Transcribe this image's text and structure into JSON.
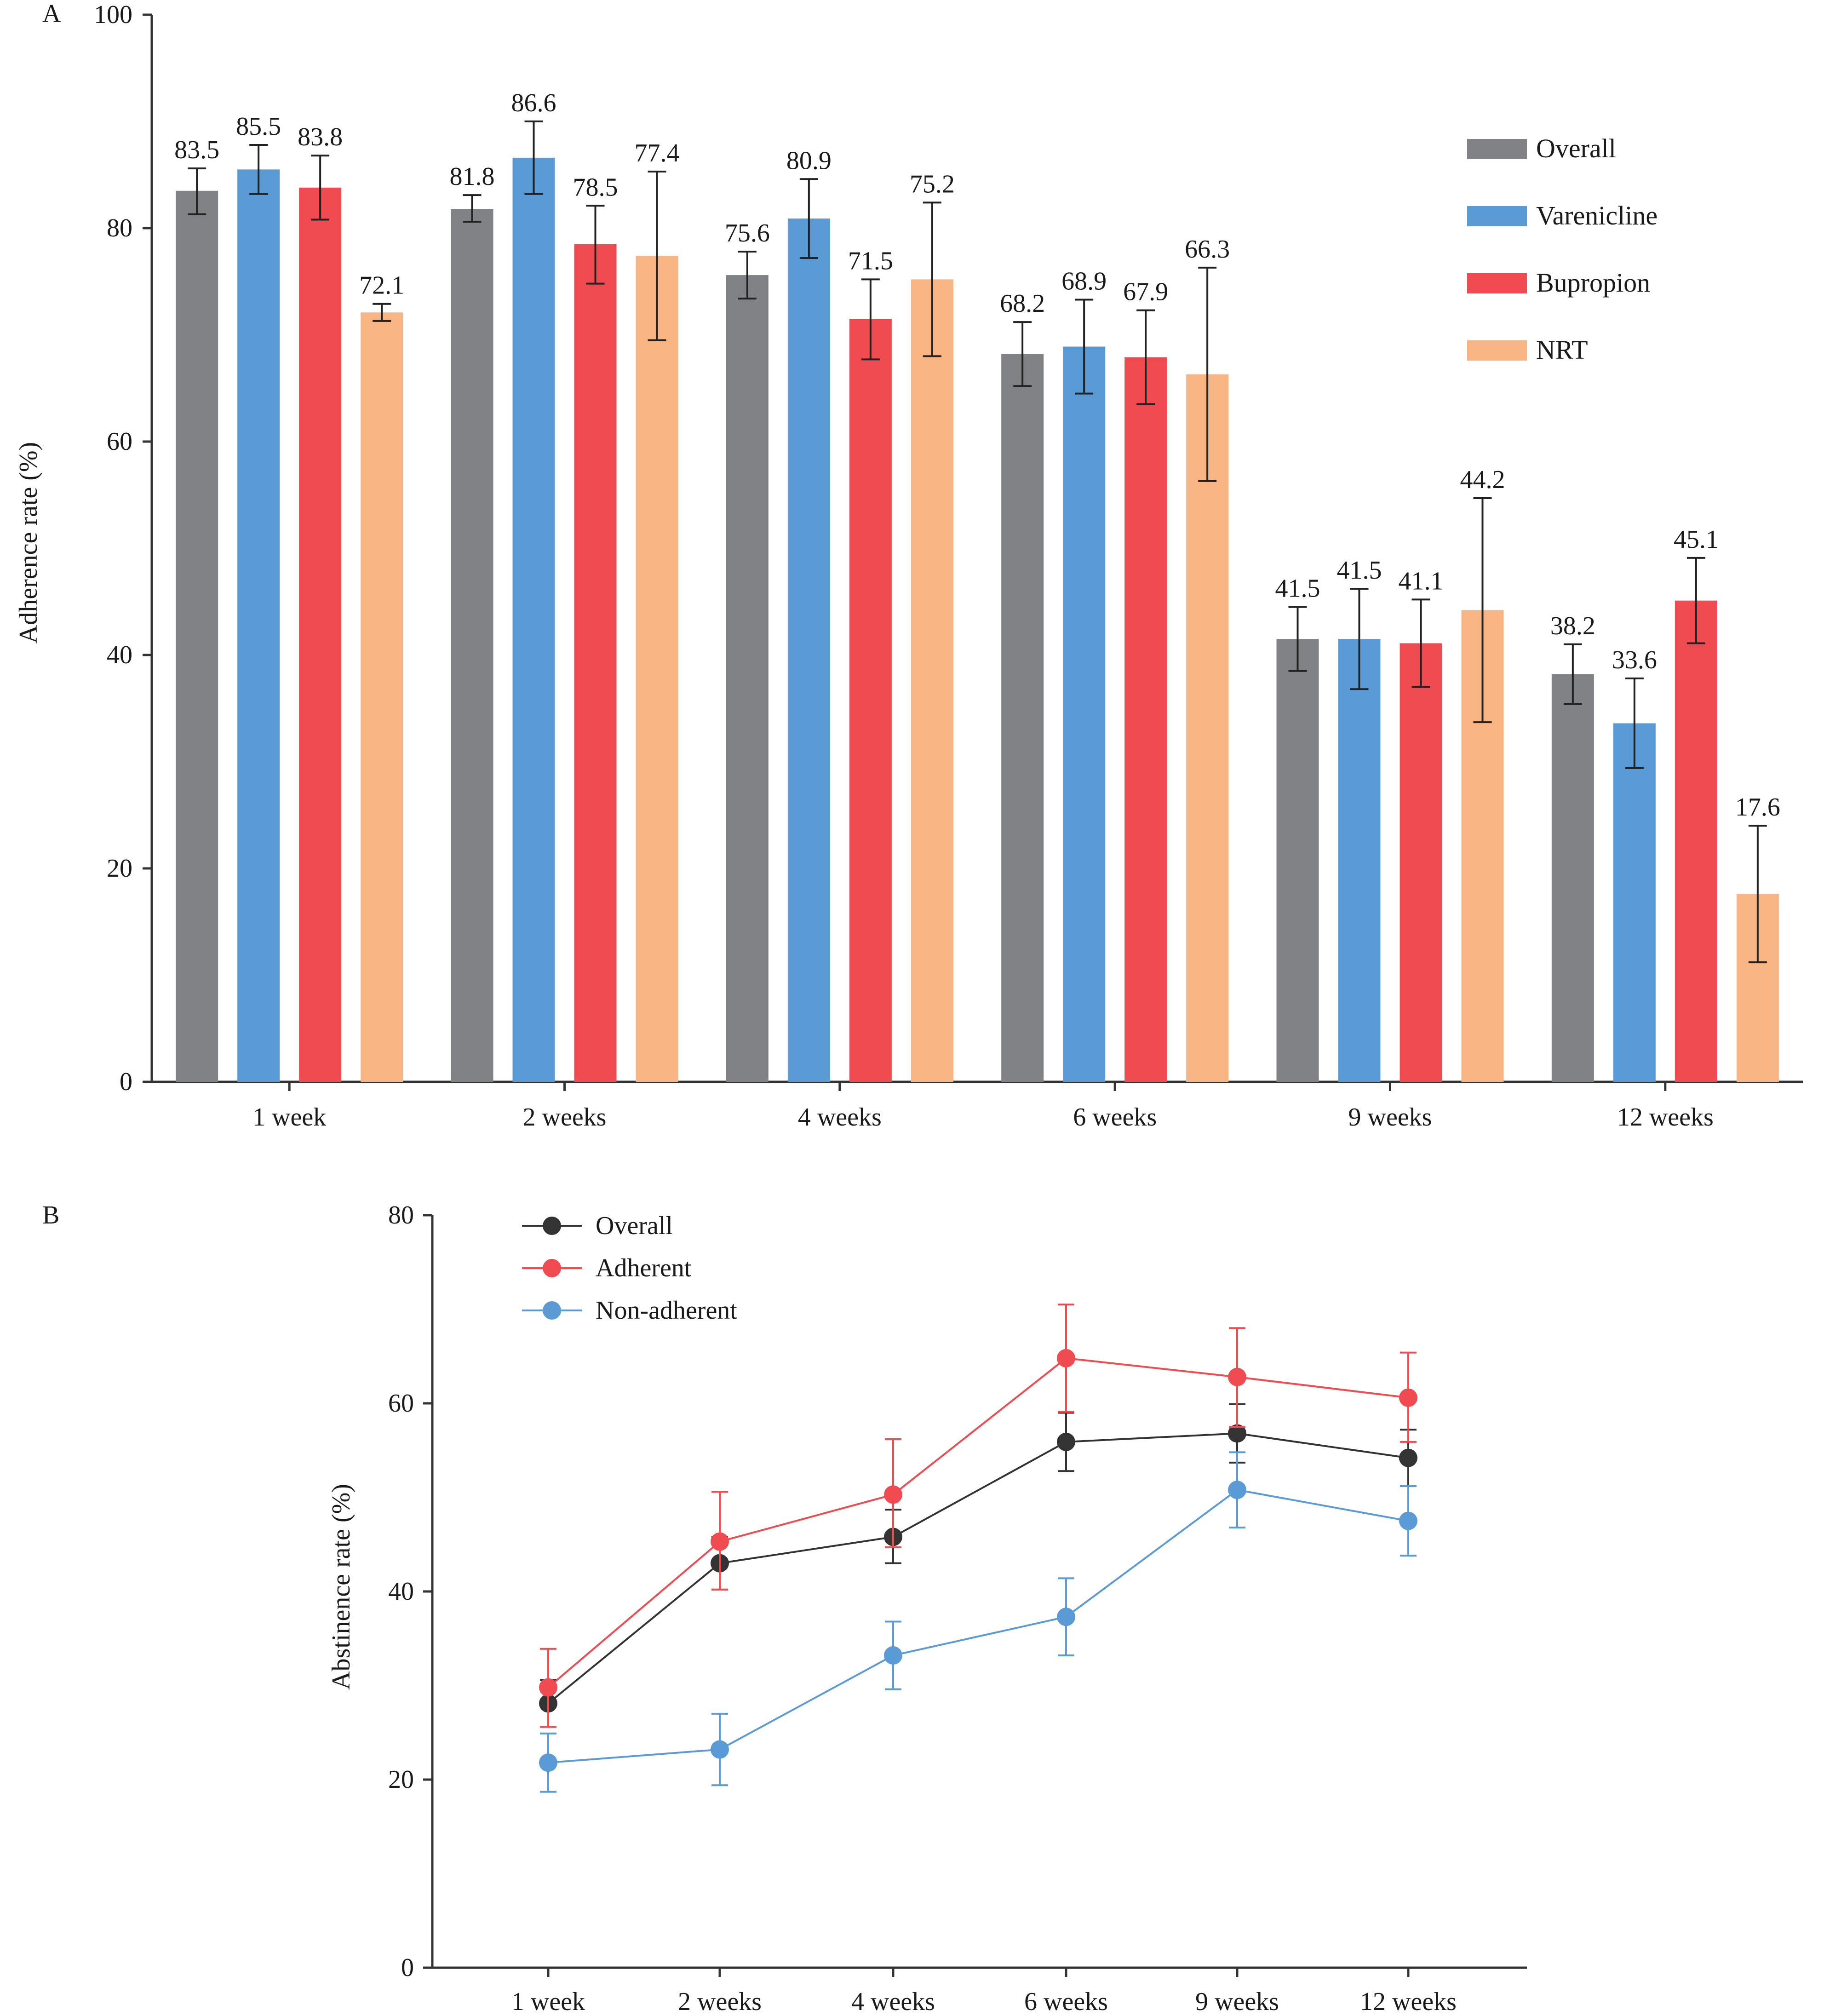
{
  "chart_data": [
    {
      "panel_label": "A",
      "type": "bar",
      "ylabel": "Adherence rate (%)",
      "xlabel": "",
      "title": "",
      "ylim": [
        0,
        100
      ],
      "yticks": [
        0,
        20,
        40,
        60,
        80,
        100
      ],
      "categories": [
        "1 week",
        "2 weeks",
        "4 weeks",
        "6 weeks",
        "9 weeks",
        "12 weeks"
      ],
      "legend_position": "top-right",
      "series": [
        {
          "name": "Overall",
          "color": "#808285",
          "values": [
            83.5,
            81.8,
            75.6,
            68.2,
            41.5,
            38.2
          ],
          "error_low": [
            81.3,
            80.6,
            73.4,
            65.2,
            38.5,
            35.4
          ],
          "error_high": [
            85.6,
            83.1,
            77.8,
            71.2,
            44.5,
            41.0
          ],
          "labels": [
            "83.5",
            "81.8",
            "75.6",
            "68.2",
            "41.5",
            "38.2"
          ]
        },
        {
          "name": "Varenicline",
          "color": "#5b9bd5",
          "values": [
            85.5,
            86.6,
            80.9,
            68.9,
            41.5,
            33.6
          ],
          "error_low": [
            83.2,
            83.2,
            77.2,
            64.5,
            36.8,
            29.4
          ],
          "error_high": [
            87.8,
            90.0,
            84.6,
            73.3,
            46.2,
            37.8
          ],
          "labels": [
            "85.5",
            "86.6",
            "80.9",
            "68.9",
            "41.5",
            "33.6"
          ]
        },
        {
          "name": "Bupropion",
          "color": "#ef4b51",
          "values": [
            83.8,
            78.5,
            71.5,
            67.9,
            41.1,
            45.1
          ],
          "error_low": [
            80.8,
            74.8,
            67.7,
            63.5,
            37.0,
            41.1
          ],
          "error_high": [
            86.8,
            82.1,
            75.2,
            72.3,
            45.2,
            49.1
          ],
          "labels": [
            "83.8",
            "78.5",
            "71.5",
            "67.9",
            "41.1",
            "45.1"
          ]
        },
        {
          "name": "NRT",
          "color": "#f9b483",
          "values": [
            72.1,
            77.4,
            75.2,
            66.3,
            44.2,
            17.6
          ],
          "error_low": [
            71.3,
            69.5,
            68.0,
            56.3,
            33.7,
            11.2
          ],
          "error_high": [
            72.9,
            85.3,
            82.4,
            76.3,
            54.7,
            24.0
          ],
          "labels": [
            "72.1",
            "77.4",
            "75.2",
            "66.3",
            "44.2",
            "17.6"
          ]
        }
      ]
    },
    {
      "panel_label": "B",
      "type": "line",
      "ylabel": "Abstinence rate (%)",
      "xlabel": "",
      "title": "",
      "ylim": [
        0,
        80
      ],
      "yticks": [
        0,
        20,
        40,
        60,
        80
      ],
      "categories": [
        "1 week",
        "2 weeks",
        "4 weeks",
        "6 weeks",
        "9 weeks",
        "12 weeks"
      ],
      "legend_position": "top-left",
      "series": [
        {
          "name": "Overall",
          "color": "#333333",
          "values": [
            28.1,
            43.0,
            45.8,
            55.9,
            56.8,
            54.2
          ],
          "error_low": [
            25.6,
            40.2,
            43.0,
            52.8,
            53.7,
            51.2
          ],
          "error_high": [
            30.6,
            45.8,
            48.7,
            59.0,
            59.9,
            57.2
          ]
        },
        {
          "name": "Adherent",
          "color": "#ef4b51",
          "values": [
            29.8,
            45.3,
            50.3,
            64.8,
            62.8,
            60.6
          ],
          "error_low": [
            25.6,
            40.2,
            44.7,
            59.1,
            57.5,
            55.9
          ],
          "error_high": [
            33.9,
            50.6,
            56.2,
            70.5,
            68.0,
            65.4
          ]
        },
        {
          "name": "Non-adherent",
          "color": "#5b9bd5",
          "values": [
            21.8,
            23.2,
            33.2,
            37.3,
            50.8,
            47.5
          ],
          "error_low": [
            18.7,
            19.4,
            29.6,
            33.2,
            46.8,
            43.8
          ],
          "error_high": [
            24.9,
            27.0,
            36.8,
            41.4,
            54.8,
            51.2
          ]
        }
      ]
    }
  ]
}
